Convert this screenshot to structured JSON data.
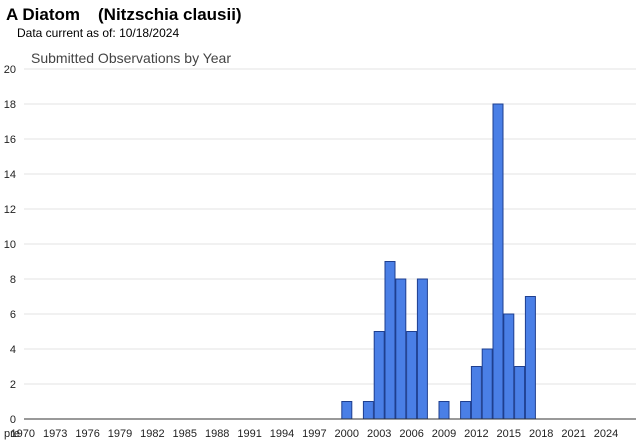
{
  "header": {
    "common_name": "A Diatom",
    "scientific_name": "(Nitzschia clausii)",
    "data_current_label": "Data current as of:",
    "data_current_date": "10/18/2024"
  },
  "colors": {
    "bar_fill": "#4a7fe6",
    "bar_stroke": "#1f3f8f",
    "gridline": "#e3e3e3",
    "axis": "#333333"
  },
  "chart_data": {
    "type": "bar",
    "title": "Submitted Observations by Year",
    "xlabel": "",
    "ylabel": "",
    "ylim": [
      0,
      20
    ],
    "y_ticks": [
      0,
      2,
      4,
      6,
      8,
      10,
      12,
      14,
      16,
      18,
      20
    ],
    "grid": true,
    "categories": [
      "pre",
      "1970",
      "1971",
      "1972",
      "1973",
      "1974",
      "1975",
      "1976",
      "1977",
      "1978",
      "1979",
      "1980",
      "1981",
      "1982",
      "1983",
      "1984",
      "1985",
      "1986",
      "1987",
      "1988",
      "1989",
      "1990",
      "1991",
      "1992",
      "1993",
      "1994",
      "1995",
      "1996",
      "1997",
      "1998",
      "1999",
      "2000",
      "2001",
      "2002",
      "2003",
      "2004",
      "2005",
      "2006",
      "2007",
      "2008",
      "2009",
      "2010",
      "2011",
      "2012",
      "2013",
      "2014",
      "2015",
      "2016",
      "2017",
      "2018",
      "2019",
      "2020",
      "2021",
      "2022",
      "2023",
      "2024"
    ],
    "x_tick_labels": [
      "pre",
      "1970",
      "1973",
      "1976",
      "1979",
      "1982",
      "1985",
      "1988",
      "1991",
      "1994",
      "1997",
      "2000",
      "2003",
      "2006",
      "2009",
      "2012",
      "2015",
      "2018",
      "2021",
      "2024"
    ],
    "values": [
      0,
      0,
      0,
      0,
      0,
      0,
      0,
      0,
      0,
      0,
      0,
      0,
      0,
      0,
      0,
      0,
      0,
      0,
      0,
      0,
      0,
      0,
      0,
      0,
      0,
      0,
      0,
      0,
      0,
      0,
      0,
      1,
      0,
      1,
      5,
      9,
      8,
      5,
      8,
      0,
      1,
      0,
      1,
      3,
      4,
      18,
      6,
      3,
      7,
      0,
      0,
      0,
      0,
      0,
      0,
      0
    ]
  }
}
